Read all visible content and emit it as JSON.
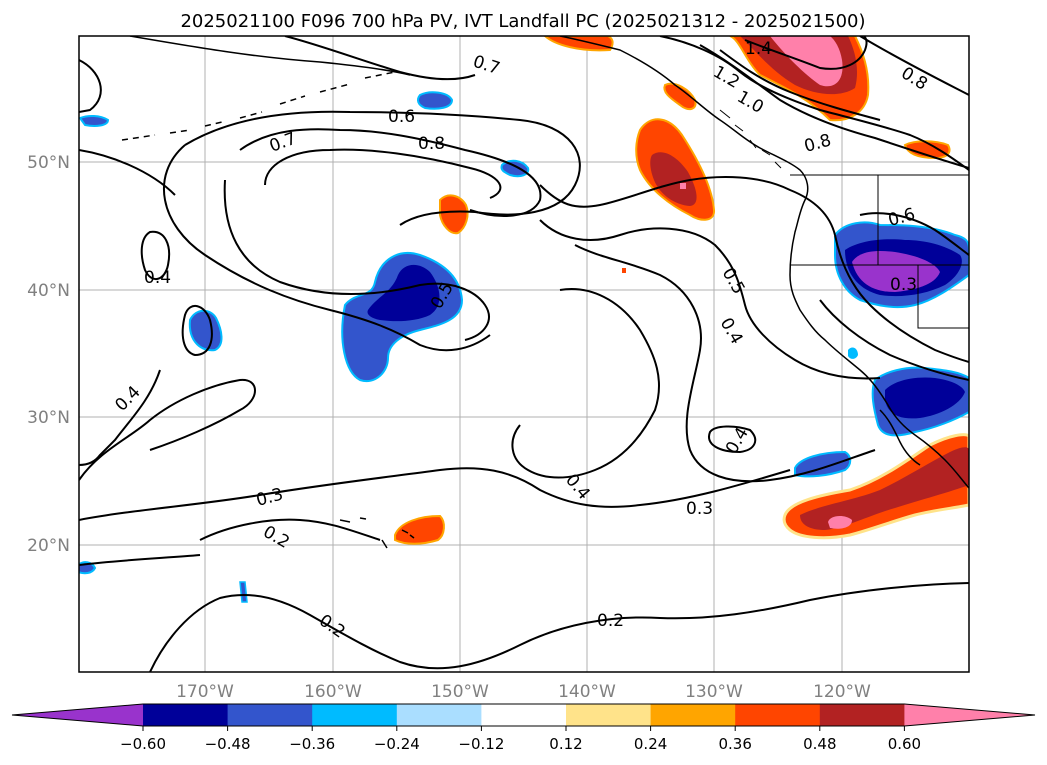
{
  "title": "2025021100 F096 700 hPa PV, IVT Landfall PC (2025021312 - 2025021500)",
  "map": {
    "lat_labels": [
      "50°N",
      "40°N",
      "30°N",
      "20°N"
    ],
    "lon_labels": [
      "170°W",
      "160°W",
      "150°W",
      "140°W",
      "130°W",
      "120°W"
    ],
    "contour_labels": [
      "0.7",
      "1.4",
      "1.2",
      "1.0",
      "0.8",
      "0.6",
      "0.7",
      "0.8",
      "0.8",
      "0.6",
      "0.4",
      "0.5",
      "0.5",
      "0.4",
      "0.3",
      "0.4",
      "0.4",
      "0.4",
      "0.3",
      "0.3",
      "0.2",
      "0.2",
      "0.2"
    ],
    "land_outline_color": "#000000",
    "contour_color": "#000000",
    "grid_color": "#b0b0b0"
  },
  "colorbar": {
    "colors": [
      "#9933cc",
      "#000099",
      "#3355cc",
      "#00bbff",
      "#aadeff",
      "#ffffff",
      "#ffe38a",
      "#ffa500",
      "#ff4500",
      "#b22222",
      "#ff80aa"
    ],
    "tick_labels": [
      "−0.60",
      "−0.48",
      "−0.36",
      "−0.24",
      "−0.12",
      "0.12",
      "0.24",
      "0.36",
      "0.48",
      "0.60"
    ]
  }
}
